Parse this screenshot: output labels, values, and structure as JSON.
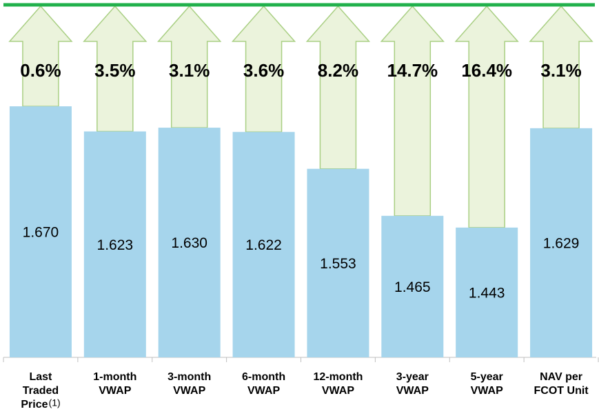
{
  "chart_data": {
    "type": "bar",
    "categories": [
      [
        "Last",
        "Traded",
        "Price"
      ],
      [
        "1-month",
        "VWAP"
      ],
      [
        "3-month",
        "VWAP"
      ],
      [
        "6-month",
        "VWAP"
      ],
      [
        "12-month",
        "VWAP"
      ],
      [
        "3-year",
        "VWAP"
      ],
      [
        "5-year",
        "VWAP"
      ],
      [
        "NAV per",
        "FCOT Unit"
      ]
    ],
    "footnote_mark": "(1)",
    "values": [
      1.67,
      1.623,
      1.63,
      1.622,
      1.553,
      1.465,
      1.443,
      1.629
    ],
    "value_labels": [
      "1.670",
      "1.623",
      "1.630",
      "1.622",
      "1.553",
      "1.465",
      "1.443",
      "1.629"
    ],
    "premiums": [
      0.6,
      3.5,
      3.1,
      3.6,
      8.2,
      14.7,
      16.4,
      3.1
    ],
    "premium_labels": [
      "0.6%",
      "3.5%",
      "3.1%",
      "3.6%",
      "8.2%",
      "14.7%",
      "16.4%",
      "3.1%"
    ],
    "color": "#a6d5ec",
    "ylim": [
      1.2,
      1.86
    ]
  }
}
